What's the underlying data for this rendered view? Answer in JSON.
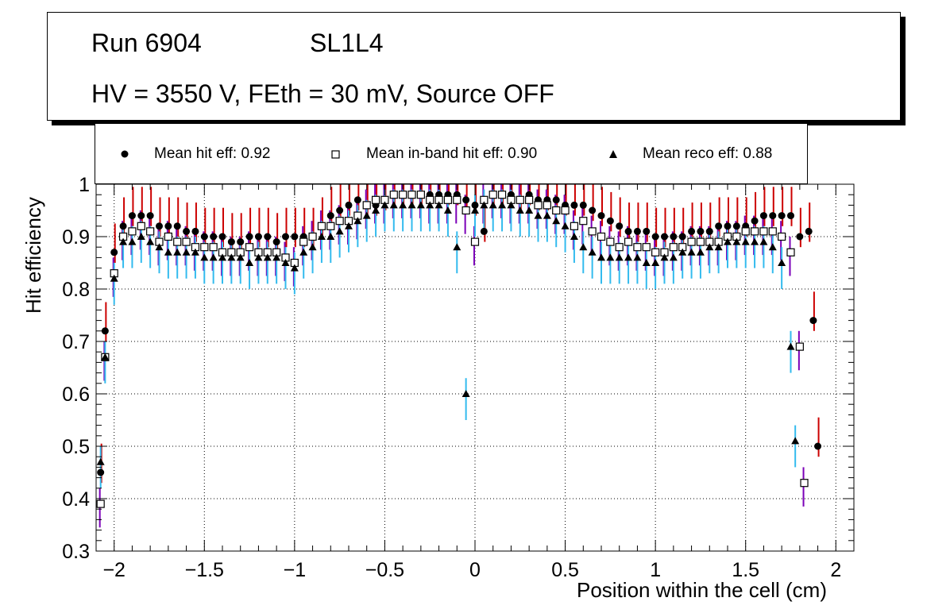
{
  "title": {
    "run": "Run 6904",
    "layer": "SL1L4",
    "conditions": "HV = 3550 V, FEth = 30 mV, Source OFF"
  },
  "legend": [
    {
      "marker": "circle",
      "label": "Mean hit  eff: 0.92"
    },
    {
      "marker": "open-square",
      "label": "Mean in-band hit eff: 0.90"
    },
    {
      "marker": "triangle",
      "label": "Mean reco eff: 0.88"
    }
  ],
  "colors": {
    "hit_error": "#cc0000",
    "inband_error": "#7b00b8",
    "reco_error": "#33bbee",
    "hit_marker": "#000000",
    "inband_marker": "#000000",
    "reco_marker": "#000000"
  },
  "chart_data": {
    "type": "scatter",
    "xlabel": "Position within the cell (cm)",
    "ylabel": "Hit efficiency",
    "xlim": [
      -2.1,
      2.1
    ],
    "ylim": [
      0.3,
      1.0
    ],
    "grid": true,
    "xticks": [
      -2,
      -1.5,
      -1,
      -0.5,
      0,
      0.5,
      1,
      1.5,
      2
    ],
    "xtick_labels": [
      "−2",
      "−1.5",
      "−1",
      "−0.5",
      "0",
      "0.5",
      "1",
      "1.5",
      "2"
    ],
    "yticks": [
      0.3,
      0.4,
      0.5,
      0.6,
      0.7,
      0.8,
      0.9,
      1.0
    ],
    "ytick_labels": [
      "0.3",
      "0.4",
      "0.5",
      "0.6",
      "0.7",
      "0.8",
      "0.9",
      "1"
    ],
    "x": [
      -2.075,
      -2.05,
      -2.025,
      -2.0,
      -1.975,
      -1.95,
      -1.925,
      -1.9,
      -1.875,
      -1.85,
      -1.825,
      -1.8,
      -1.775,
      -1.75,
      -1.725,
      -1.7,
      -1.675,
      -1.65,
      -1.625,
      -1.6,
      -1.575,
      -1.55,
      -1.525,
      -1.5,
      -1.475,
      -1.45,
      -1.425,
      -1.4,
      -1.375,
      -1.35,
      -1.325,
      -1.3,
      -1.275,
      -1.25,
      -1.225,
      -1.2,
      -1.175,
      -1.15,
      -1.125,
      -1.1,
      -1.075,
      -1.05,
      -1.025,
      -1.0,
      -0.975,
      -0.95,
      -0.925,
      -0.9,
      -0.875,
      -0.85,
      -0.825,
      -0.8,
      -0.775,
      -0.75,
      -0.725,
      -0.7,
      -0.675,
      -0.65,
      -0.625,
      -0.6,
      -0.575,
      -0.55,
      -0.525,
      -0.5,
      -0.475,
      -0.45,
      -0.425,
      -0.4,
      -0.375,
      -0.35,
      -0.325,
      -0.3,
      -0.275,
      -0.25,
      -0.225,
      -0.2,
      -0.175,
      -0.15,
      -0.125,
      -0.1,
      -0.075,
      -0.05,
      -0.025,
      0.0,
      0.025,
      0.05,
      0.075,
      0.1,
      0.125,
      0.15,
      0.175,
      0.2,
      0.225,
      0.25,
      0.275,
      0.3,
      0.325,
      0.35,
      0.375,
      0.4,
      0.425,
      0.45,
      0.475,
      0.5,
      0.525,
      0.55,
      0.575,
      0.6,
      0.625,
      0.65,
      0.675,
      0.7,
      0.725,
      0.75,
      0.775,
      0.8,
      0.825,
      0.85,
      0.875,
      0.9,
      0.925,
      0.95,
      0.975,
      1.0,
      1.025,
      1.05,
      1.075,
      1.1,
      1.125,
      1.15,
      1.175,
      1.2,
      1.225,
      1.25,
      1.275,
      1.3,
      1.325,
      1.35,
      1.375,
      1.4,
      1.425,
      1.45,
      1.475,
      1.5,
      1.525,
      1.55,
      1.575,
      1.6,
      1.625,
      1.65,
      1.675,
      1.7,
      1.725,
      1.75,
      1.775,
      1.8,
      1.825,
      1.85,
      1.875,
      1.9,
      1.925,
      1.95,
      1.975,
      2.0,
      2.025,
      2.05,
      2.075
    ],
    "series": [
      {
        "name": "Mean hit  eff: 0.92",
        "marker": "circle",
        "values": [
          0.45,
          0.72,
          null,
          0.87,
          null,
          0.92,
          null,
          0.94,
          null,
          0.94,
          null,
          0.94,
          null,
          0.92,
          null,
          0.92,
          null,
          0.92,
          null,
          0.91,
          null,
          0.91,
          null,
          0.9,
          null,
          0.9,
          null,
          0.9,
          null,
          0.89,
          null,
          0.89,
          null,
          0.9,
          null,
          0.9,
          null,
          0.9,
          null,
          0.89,
          null,
          0.9,
          null,
          0.9,
          null,
          0.9,
          null,
          0.9,
          null,
          0.92,
          null,
          0.94,
          null,
          0.95,
          null,
          0.96,
          null,
          0.97,
          null,
          0.96,
          null,
          0.96,
          null,
          0.97,
          null,
          0.98,
          null,
          0.98,
          null,
          0.98,
          null,
          0.98,
          null,
          0.98,
          null,
          0.98,
          null,
          0.98,
          null,
          0.98,
          null,
          0.97,
          null,
          0.96,
          null,
          0.91,
          null,
          0.98,
          null,
          0.98,
          null,
          0.98,
          null,
          0.97,
          null,
          0.98,
          null,
          0.97,
          null,
          0.97,
          null,
          0.97,
          null,
          0.96,
          null,
          0.96,
          null,
          0.96,
          null,
          0.95,
          null,
          0.94,
          null,
          0.93,
          null,
          0.92,
          null,
          0.91,
          null,
          0.91,
          null,
          0.91,
          null,
          0.9,
          null,
          0.9,
          null,
          0.9,
          null,
          0.9,
          null,
          0.91,
          null,
          0.91,
          null,
          0.91,
          null,
          0.92,
          null,
          0.92,
          null,
          0.92,
          null,
          0.92,
          null,
          0.93,
          null,
          0.94,
          null,
          0.94,
          null,
          0.94,
          null,
          0.94,
          null,
          0.9,
          null,
          0.91,
          0.74,
          0.5
        ]
      },
      {
        "name": "Mean in-band hit eff: 0.90",
        "marker": "open-square",
        "values": [
          0.39,
          0.67,
          null,
          0.83,
          null,
          0.9,
          null,
          0.91,
          null,
          0.92,
          null,
          0.91,
          null,
          0.89,
          null,
          0.9,
          null,
          0.89,
          null,
          0.89,
          null,
          0.88,
          null,
          0.88,
          null,
          0.88,
          null,
          0.87,
          null,
          0.87,
          null,
          0.87,
          null,
          0.88,
          null,
          0.87,
          null,
          0.87,
          null,
          0.87,
          null,
          0.86,
          null,
          0.85,
          null,
          0.89,
          null,
          0.9,
          null,
          0.92,
          null,
          0.92,
          null,
          0.93,
          null,
          0.93,
          null,
          0.94,
          null,
          0.96,
          null,
          0.97,
          null,
          0.97,
          null,
          0.98,
          null,
          0.98,
          null,
          0.98,
          null,
          0.98,
          null,
          0.97,
          null,
          0.97,
          null,
          0.97,
          null,
          0.97,
          null,
          0.95,
          null,
          0.89,
          null,
          0.97,
          null,
          0.98,
          null,
          0.98,
          null,
          0.97,
          null,
          0.97,
          null,
          0.97,
          null,
          0.96,
          null,
          0.96,
          null,
          0.95,
          null,
          0.95,
          null,
          0.92,
          null,
          0.93,
          null,
          0.91,
          null,
          0.9,
          null,
          0.89,
          null,
          0.88,
          null,
          0.89,
          null,
          0.88,
          null,
          0.88,
          null,
          0.87,
          null,
          0.87,
          null,
          0.88,
          null,
          0.88,
          null,
          0.89,
          null,
          0.89,
          null,
          0.89,
          null,
          0.89,
          null,
          0.9,
          null,
          0.9,
          null,
          0.91,
          null,
          0.91,
          null,
          0.91,
          null,
          0.91,
          null,
          0.9,
          null,
          0.87,
          null,
          0.69,
          0.43
        ]
      },
      {
        "name": "Mean reco eff: 0.88",
        "marker": "triangle",
        "values": [
          0.47,
          0.67,
          null,
          0.82,
          null,
          0.89,
          null,
          0.89,
          null,
          0.9,
          null,
          0.89,
          null,
          0.88,
          null,
          0.87,
          null,
          0.87,
          null,
          0.87,
          null,
          0.87,
          null,
          0.86,
          null,
          0.86,
          null,
          0.86,
          null,
          0.86,
          null,
          0.86,
          null,
          0.85,
          null,
          0.86,
          null,
          0.86,
          null,
          0.86,
          null,
          0.85,
          null,
          0.84,
          null,
          0.87,
          null,
          0.88,
          null,
          0.9,
          null,
          0.9,
          null,
          0.91,
          null,
          0.92,
          null,
          0.93,
          null,
          0.94,
          null,
          0.95,
          null,
          0.96,
          null,
          0.96,
          null,
          0.96,
          null,
          0.96,
          null,
          0.96,
          null,
          0.96,
          null,
          0.96,
          null,
          0.95,
          null,
          0.88,
          null,
          0.6,
          null,
          0.95,
          null,
          0.96,
          null,
          0.96,
          null,
          0.96,
          null,
          0.96,
          null,
          0.95,
          null,
          0.95,
          null,
          0.94,
          null,
          0.94,
          null,
          0.93,
          null,
          0.92,
          null,
          0.9,
          null,
          0.88,
          null,
          0.87,
          null,
          0.86,
          null,
          0.86,
          null,
          0.86,
          null,
          0.86,
          null,
          0.86,
          null,
          0.85,
          null,
          0.85,
          null,
          0.86,
          null,
          0.86,
          null,
          0.87,
          null,
          0.87,
          null,
          0.87,
          null,
          0.88,
          null,
          0.88,
          null,
          0.89,
          null,
          0.89,
          null,
          0.89,
          null,
          0.89,
          null,
          0.89,
          null,
          0.88,
          null,
          0.85,
          null,
          0.69,
          0.51
        ]
      }
    ]
  }
}
